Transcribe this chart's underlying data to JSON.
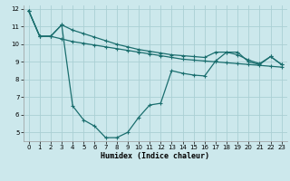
{
  "background_color": "#cce8ec",
  "grid_color": "#aacfd4",
  "line_color": "#1a6e6e",
  "xlabel": "Humidex (Indice chaleur)",
  "xlim": [
    -0.5,
    23.5
  ],
  "ylim": [
    4.5,
    12.2
  ],
  "yticks": [
    5,
    6,
    7,
    8,
    9,
    10,
    11,
    12
  ],
  "xticks": [
    0,
    1,
    2,
    3,
    4,
    5,
    6,
    7,
    8,
    9,
    10,
    11,
    12,
    13,
    14,
    15,
    16,
    17,
    18,
    19,
    20,
    21,
    22,
    23
  ],
  "line1_x": [
    0,
    1,
    2,
    3,
    4,
    5,
    6,
    7,
    8,
    9,
    10,
    11,
    12,
    13,
    14,
    15,
    16,
    17,
    18,
    19,
    20,
    21,
    22,
    23
  ],
  "line1_y": [
    11.9,
    10.45,
    10.45,
    11.1,
    10.8,
    10.6,
    10.4,
    10.2,
    10.0,
    9.85,
    9.7,
    9.6,
    9.5,
    9.4,
    9.35,
    9.3,
    9.25,
    9.55,
    9.55,
    9.4,
    9.1,
    8.9,
    9.3,
    8.85
  ],
  "line2_x": [
    0,
    1,
    2,
    3,
    4,
    5,
    6,
    7,
    8,
    9,
    10,
    11,
    12,
    13,
    14,
    15,
    16,
    17,
    18,
    19,
    20,
    21,
    22,
    23
  ],
  "line2_y": [
    11.9,
    10.45,
    10.45,
    10.3,
    10.15,
    10.05,
    9.95,
    9.85,
    9.75,
    9.65,
    9.55,
    9.45,
    9.35,
    9.25,
    9.15,
    9.1,
    9.05,
    9.0,
    8.95,
    8.9,
    8.85,
    8.8,
    8.75,
    8.7
  ],
  "line3_x": [
    0,
    1,
    2,
    3,
    4,
    5,
    6,
    7,
    8,
    9,
    10,
    11,
    12,
    13,
    14,
    15,
    16,
    17,
    18,
    19,
    20,
    21,
    22,
    23
  ],
  "line3_y": [
    11.9,
    10.45,
    10.45,
    11.1,
    6.5,
    5.7,
    5.35,
    4.7,
    4.7,
    5.0,
    5.85,
    6.55,
    6.65,
    8.5,
    8.35,
    8.25,
    8.2,
    9.05,
    9.55,
    9.55,
    9.0,
    8.85,
    9.3,
    8.85
  ]
}
